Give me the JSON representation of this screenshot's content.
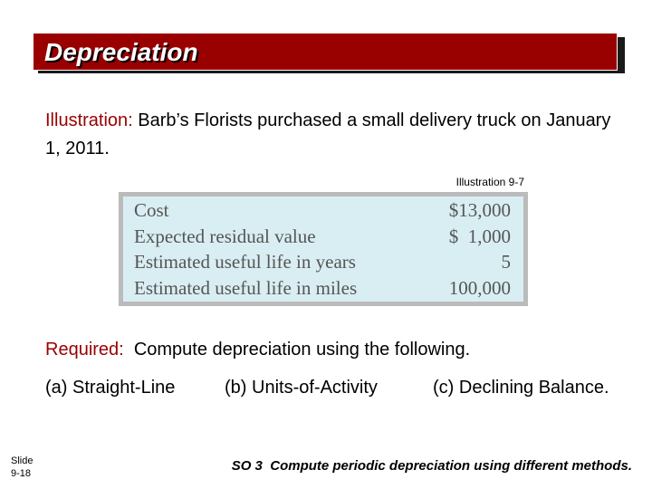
{
  "title": "Depreciation",
  "illustration": {
    "label": "Illustration:",
    "text": "  Barb’s Florists purchased a small delivery truck on January 1, 2011."
  },
  "illustration_ref": "Illustration 9-7",
  "table": {
    "rows": [
      {
        "label": "Cost",
        "value": "$13,000"
      },
      {
        "label": "Expected residual value",
        "value": "$  1,000"
      },
      {
        "label": "Estimated useful life in years",
        "value": "5"
      },
      {
        "label": "Estimated useful life in miles",
        "value": "100,000"
      }
    ]
  },
  "required": {
    "label": "Required:",
    "text": "  Compute depreciation using the following."
  },
  "methods": [
    "(a) Straight-Line",
    "(b) Units-of-Activity",
    "(c) Declining Balance."
  ],
  "slide": {
    "label": "Slide",
    "number": "9-18"
  },
  "footer": "SO 3  Compute periodic depreciation using different methods.",
  "colors": {
    "title_bar": "#990000",
    "label_red": "#990000",
    "table_bg": "#d9eef2",
    "table_border": "#bbbbbb"
  }
}
